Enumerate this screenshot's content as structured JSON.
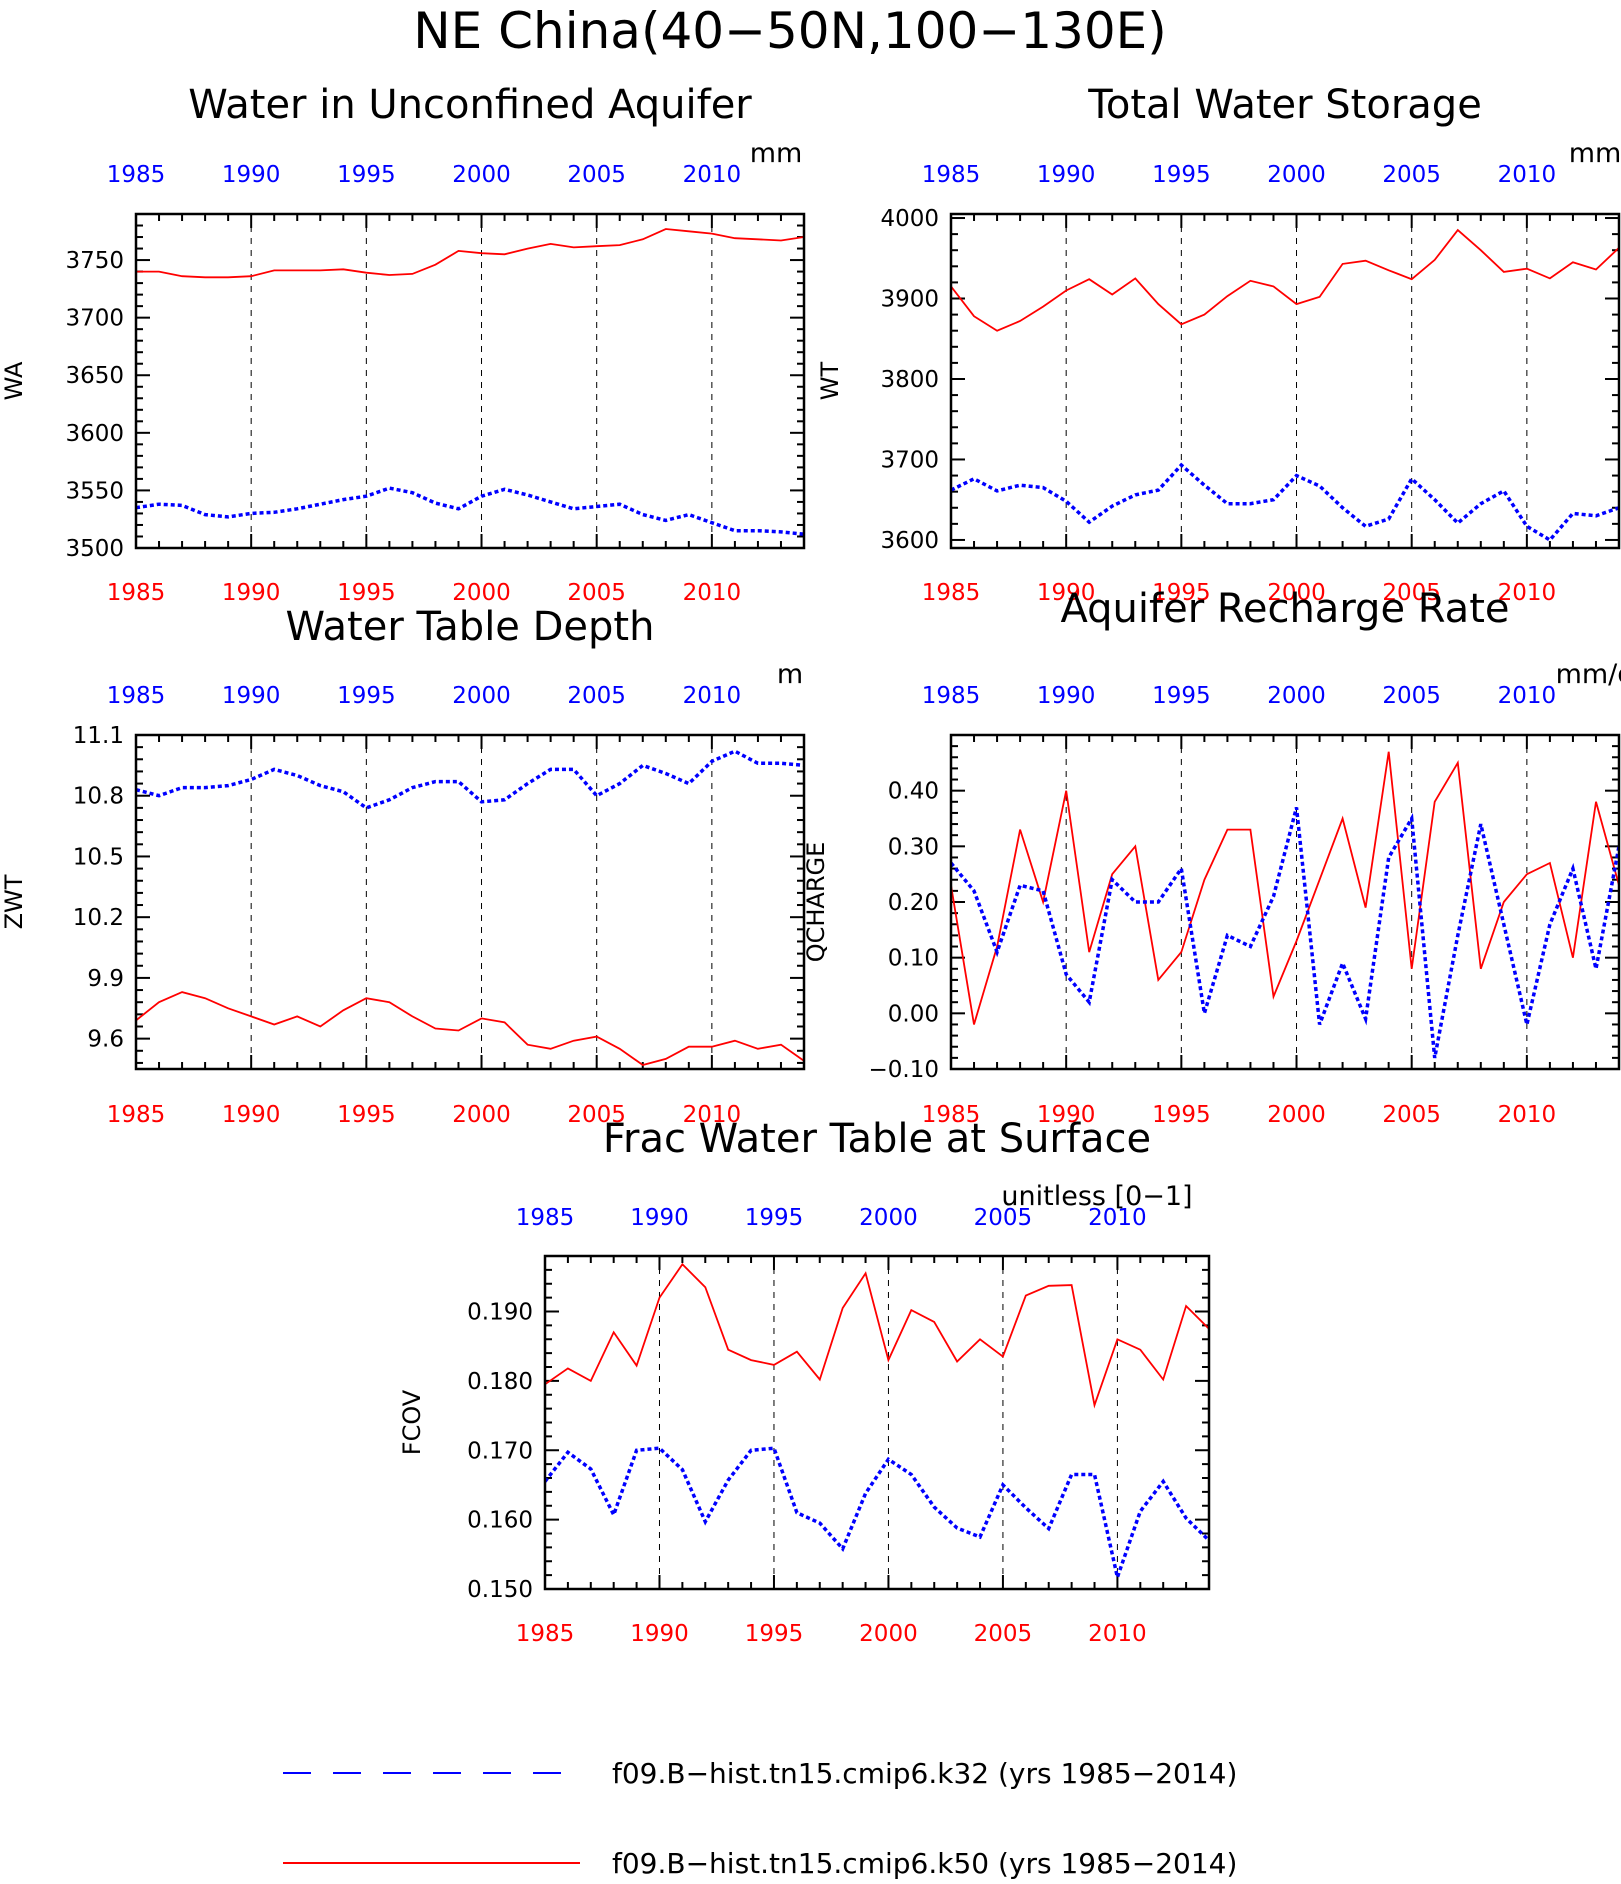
{
  "main_title": "NE China(40−50N,100−130E)",
  "colors": {
    "k32": "#0000ff",
    "k50": "#ff0000",
    "bottom_axis": "#ff0000",
    "top_axis": "#0000ff"
  },
  "legend": [
    {
      "label": "f09.B−hist.tn15.cmip6.k32 (yrs 1985−2014)",
      "color": "#0000ff",
      "style": "dashed"
    },
    {
      "label": "f09.B−hist.tn15.cmip6.k50 (yrs 1985−2014)",
      "color": "#ff0000",
      "style": "solid"
    }
  ],
  "chart_data": [
    {
      "type": "line",
      "title": "Water in Unconfined Aquifer",
      "units": "mm",
      "ylabel": "WA",
      "xlim": [
        1985,
        2014
      ],
      "ylim": [
        3500,
        3790
      ],
      "yticks": [
        3500,
        3550,
        3600,
        3650,
        3700,
        3750
      ],
      "ytick_labels": [
        "3500",
        "3550",
        "3600",
        "3650",
        "3700",
        "3750"
      ],
      "xticks": [
        1985,
        1990,
        1995,
        2000,
        2005,
        2010
      ],
      "xtick_labels": [
        "1985",
        "1990",
        "1995",
        "2000",
        "2005",
        "2010"
      ],
      "series": [
        {
          "key": "k50",
          "style": "solid",
          "color": "#ff0000",
          "values": [
            3740,
            3740,
            3736,
            3735,
            3735,
            3736,
            3741,
            3741,
            3741,
            3742,
            3739,
            3737,
            3738,
            3746,
            3758,
            3756,
            3755,
            3760,
            3764,
            3761,
            3762,
            3763,
            3768,
            3777,
            3775,
            3773,
            3769,
            3768,
            3767,
            3770
          ]
        },
        {
          "key": "k32",
          "style": "dotted",
          "color": "#0000ff",
          "values": [
            3535,
            3538,
            3537,
            3529,
            3527,
            3530,
            3531,
            3534,
            3538,
            3542,
            3545,
            3552,
            3548,
            3539,
            3534,
            3545,
            3551,
            3546,
            3540,
            3534,
            3536,
            3538,
            3529,
            3524,
            3529,
            3522,
            3515,
            3515,
            3514,
            3512
          ]
        }
      ]
    },
    {
      "type": "line",
      "title": "Total Water Storage",
      "units": "mm",
      "ylabel": "WT",
      "xlim": [
        1985,
        2014
      ],
      "ylim": [
        3590,
        4005
      ],
      "yticks": [
        3600,
        3700,
        3800,
        3900,
        4000
      ],
      "ytick_labels": [
        "3600",
        "3700",
        "3800",
        "3900",
        "4000"
      ],
      "xticks": [
        1985,
        1990,
        1995,
        2000,
        2005,
        2010
      ],
      "xtick_labels": [
        "1985",
        "1990",
        "1995",
        "2000",
        "2005",
        "2010"
      ],
      "series": [
        {
          "key": "k50",
          "style": "solid",
          "color": "#ff0000",
          "values": [
            3915,
            3878,
            3860,
            3872,
            3890,
            3910,
            3924,
            3905,
            3925,
            3893,
            3868,
            3880,
            3903,
            3922,
            3915,
            3893,
            3902,
            3943,
            3947,
            3935,
            3924,
            3948,
            3985,
            3960,
            3933,
            3937,
            3925,
            3945,
            3936,
            3963
          ]
        },
        {
          "key": "k32",
          "style": "dotted",
          "color": "#0000ff",
          "values": [
            3662,
            3676,
            3661,
            3668,
            3665,
            3648,
            3622,
            3642,
            3656,
            3662,
            3693,
            3668,
            3645,
            3645,
            3650,
            3680,
            3667,
            3640,
            3617,
            3626,
            3676,
            3650,
            3621,
            3645,
            3661,
            3617,
            3600,
            3633,
            3630,
            3640
          ]
        }
      ]
    },
    {
      "type": "line",
      "title": "Water Table Depth",
      "units": "m",
      "ylabel": "ZWT",
      "xlim": [
        1985,
        2014
      ],
      "ylim": [
        9.45,
        11.1
      ],
      "yticks": [
        9.6,
        9.9,
        10.2,
        10.5,
        10.8,
        11.1
      ],
      "ytick_labels": [
        "9.6",
        "9.9",
        "10.2",
        "10.5",
        "10.8",
        "11.1"
      ],
      "xticks": [
        1985,
        1990,
        1995,
        2000,
        2005,
        2010
      ],
      "xtick_labels": [
        "1985",
        "1990",
        "1995",
        "2000",
        "2005",
        "2010"
      ],
      "series": [
        {
          "key": "k50",
          "style": "solid",
          "color": "#ff0000",
          "values": [
            9.69,
            9.78,
            9.83,
            9.8,
            9.75,
            9.71,
            9.67,
            9.71,
            9.66,
            9.74,
            9.8,
            9.78,
            9.71,
            9.65,
            9.64,
            9.7,
            9.68,
            9.57,
            9.55,
            9.59,
            9.61,
            9.55,
            9.47,
            9.5,
            9.56,
            9.56,
            9.59,
            9.55,
            9.57,
            9.49
          ]
        },
        {
          "key": "k32",
          "style": "dotted",
          "color": "#0000ff",
          "values": [
            10.83,
            10.8,
            10.84,
            10.84,
            10.85,
            10.88,
            10.93,
            10.9,
            10.85,
            10.82,
            10.74,
            10.78,
            10.84,
            10.87,
            10.87,
            10.77,
            10.78,
            10.86,
            10.93,
            10.93,
            10.8,
            10.86,
            10.95,
            10.91,
            10.86,
            10.97,
            11.02,
            10.96,
            10.96,
            10.95
          ]
        }
      ]
    },
    {
      "type": "line",
      "title": "Aquifer Recharge Rate",
      "units": "mm/d",
      "ylabel": "QCHARGE",
      "xlim": [
        1985,
        2014
      ],
      "ylim": [
        -0.1,
        0.5
      ],
      "yticks": [
        -0.1,
        0.0,
        0.1,
        0.2,
        0.3,
        0.4
      ],
      "ytick_labels": [
        "−0.10",
        "0.00",
        "0.10",
        "0.20",
        "0.30",
        "0.40"
      ],
      "xticks": [
        1985,
        1990,
        1995,
        2000,
        2005,
        2010
      ],
      "xtick_labels": [
        "1985",
        "1990",
        "1995",
        "2000",
        "2005",
        "2010"
      ],
      "series": [
        {
          "key": "k50",
          "style": "solid",
          "color": "#ff0000",
          "values": [
            0.23,
            -0.02,
            0.12,
            0.33,
            0.2,
            0.4,
            0.11,
            0.25,
            0.3,
            0.06,
            0.11,
            0.24,
            0.33,
            0.33,
            0.03,
            0.13,
            0.24,
            0.35,
            0.19,
            0.47,
            0.08,
            0.38,
            0.45,
            0.08,
            0.2,
            0.25,
            0.27,
            0.1,
            0.38,
            0.23
          ]
        },
        {
          "key": "k32",
          "style": "dotted",
          "color": "#0000ff",
          "values": [
            0.27,
            0.22,
            0.11,
            0.23,
            0.22,
            0.07,
            0.02,
            0.24,
            0.2,
            0.2,
            0.26,
            0.0,
            0.14,
            0.12,
            0.21,
            0.37,
            -0.02,
            0.09,
            -0.01,
            0.28,
            0.35,
            -0.08,
            0.14,
            0.34,
            0.16,
            -0.02,
            0.16,
            0.26,
            0.08,
            0.3
          ]
        }
      ]
    },
    {
      "type": "line",
      "title": "Frac Water Table at Surface",
      "units": "unitless [0−1]",
      "ylabel": "FCOV",
      "xlim": [
        1985,
        2014
      ],
      "ylim": [
        0.15,
        0.198
      ],
      "yticks": [
        0.15,
        0.16,
        0.17,
        0.18,
        0.19
      ],
      "ytick_labels": [
        "0.150",
        "0.160",
        "0.170",
        "0.180",
        "0.190"
      ],
      "xticks": [
        1985,
        1990,
        1995,
        2000,
        2005,
        2010
      ],
      "xtick_labels": [
        "1985",
        "1990",
        "1995",
        "2000",
        "2005",
        "2010"
      ],
      "series": [
        {
          "key": "k50",
          "style": "solid",
          "color": "#ff0000",
          "values": [
            0.1795,
            0.1818,
            0.18,
            0.187,
            0.1822,
            0.192,
            0.1968,
            0.1935,
            0.1845,
            0.183,
            0.1823,
            0.1842,
            0.1802,
            0.1905,
            0.1955,
            0.183,
            0.1902,
            0.1885,
            0.1828,
            0.186,
            0.1835,
            0.1923,
            0.1937,
            0.1938,
            0.1765,
            0.186,
            0.1845,
            0.1802,
            0.1908,
            0.1875
          ]
        },
        {
          "key": "k32",
          "style": "dotted",
          "color": "#0000ff",
          "values": [
            0.1655,
            0.1697,
            0.1673,
            0.1607,
            0.17,
            0.1703,
            0.1672,
            0.1597,
            0.1657,
            0.17,
            0.1703,
            0.161,
            0.1595,
            0.1558,
            0.1638,
            0.1687,
            0.1665,
            0.1618,
            0.1588,
            0.1575,
            0.165,
            0.1617,
            0.1587,
            0.1665,
            0.1665,
            0.1517,
            0.1612,
            0.1655,
            0.1602,
            0.157
          ]
        }
      ]
    }
  ]
}
